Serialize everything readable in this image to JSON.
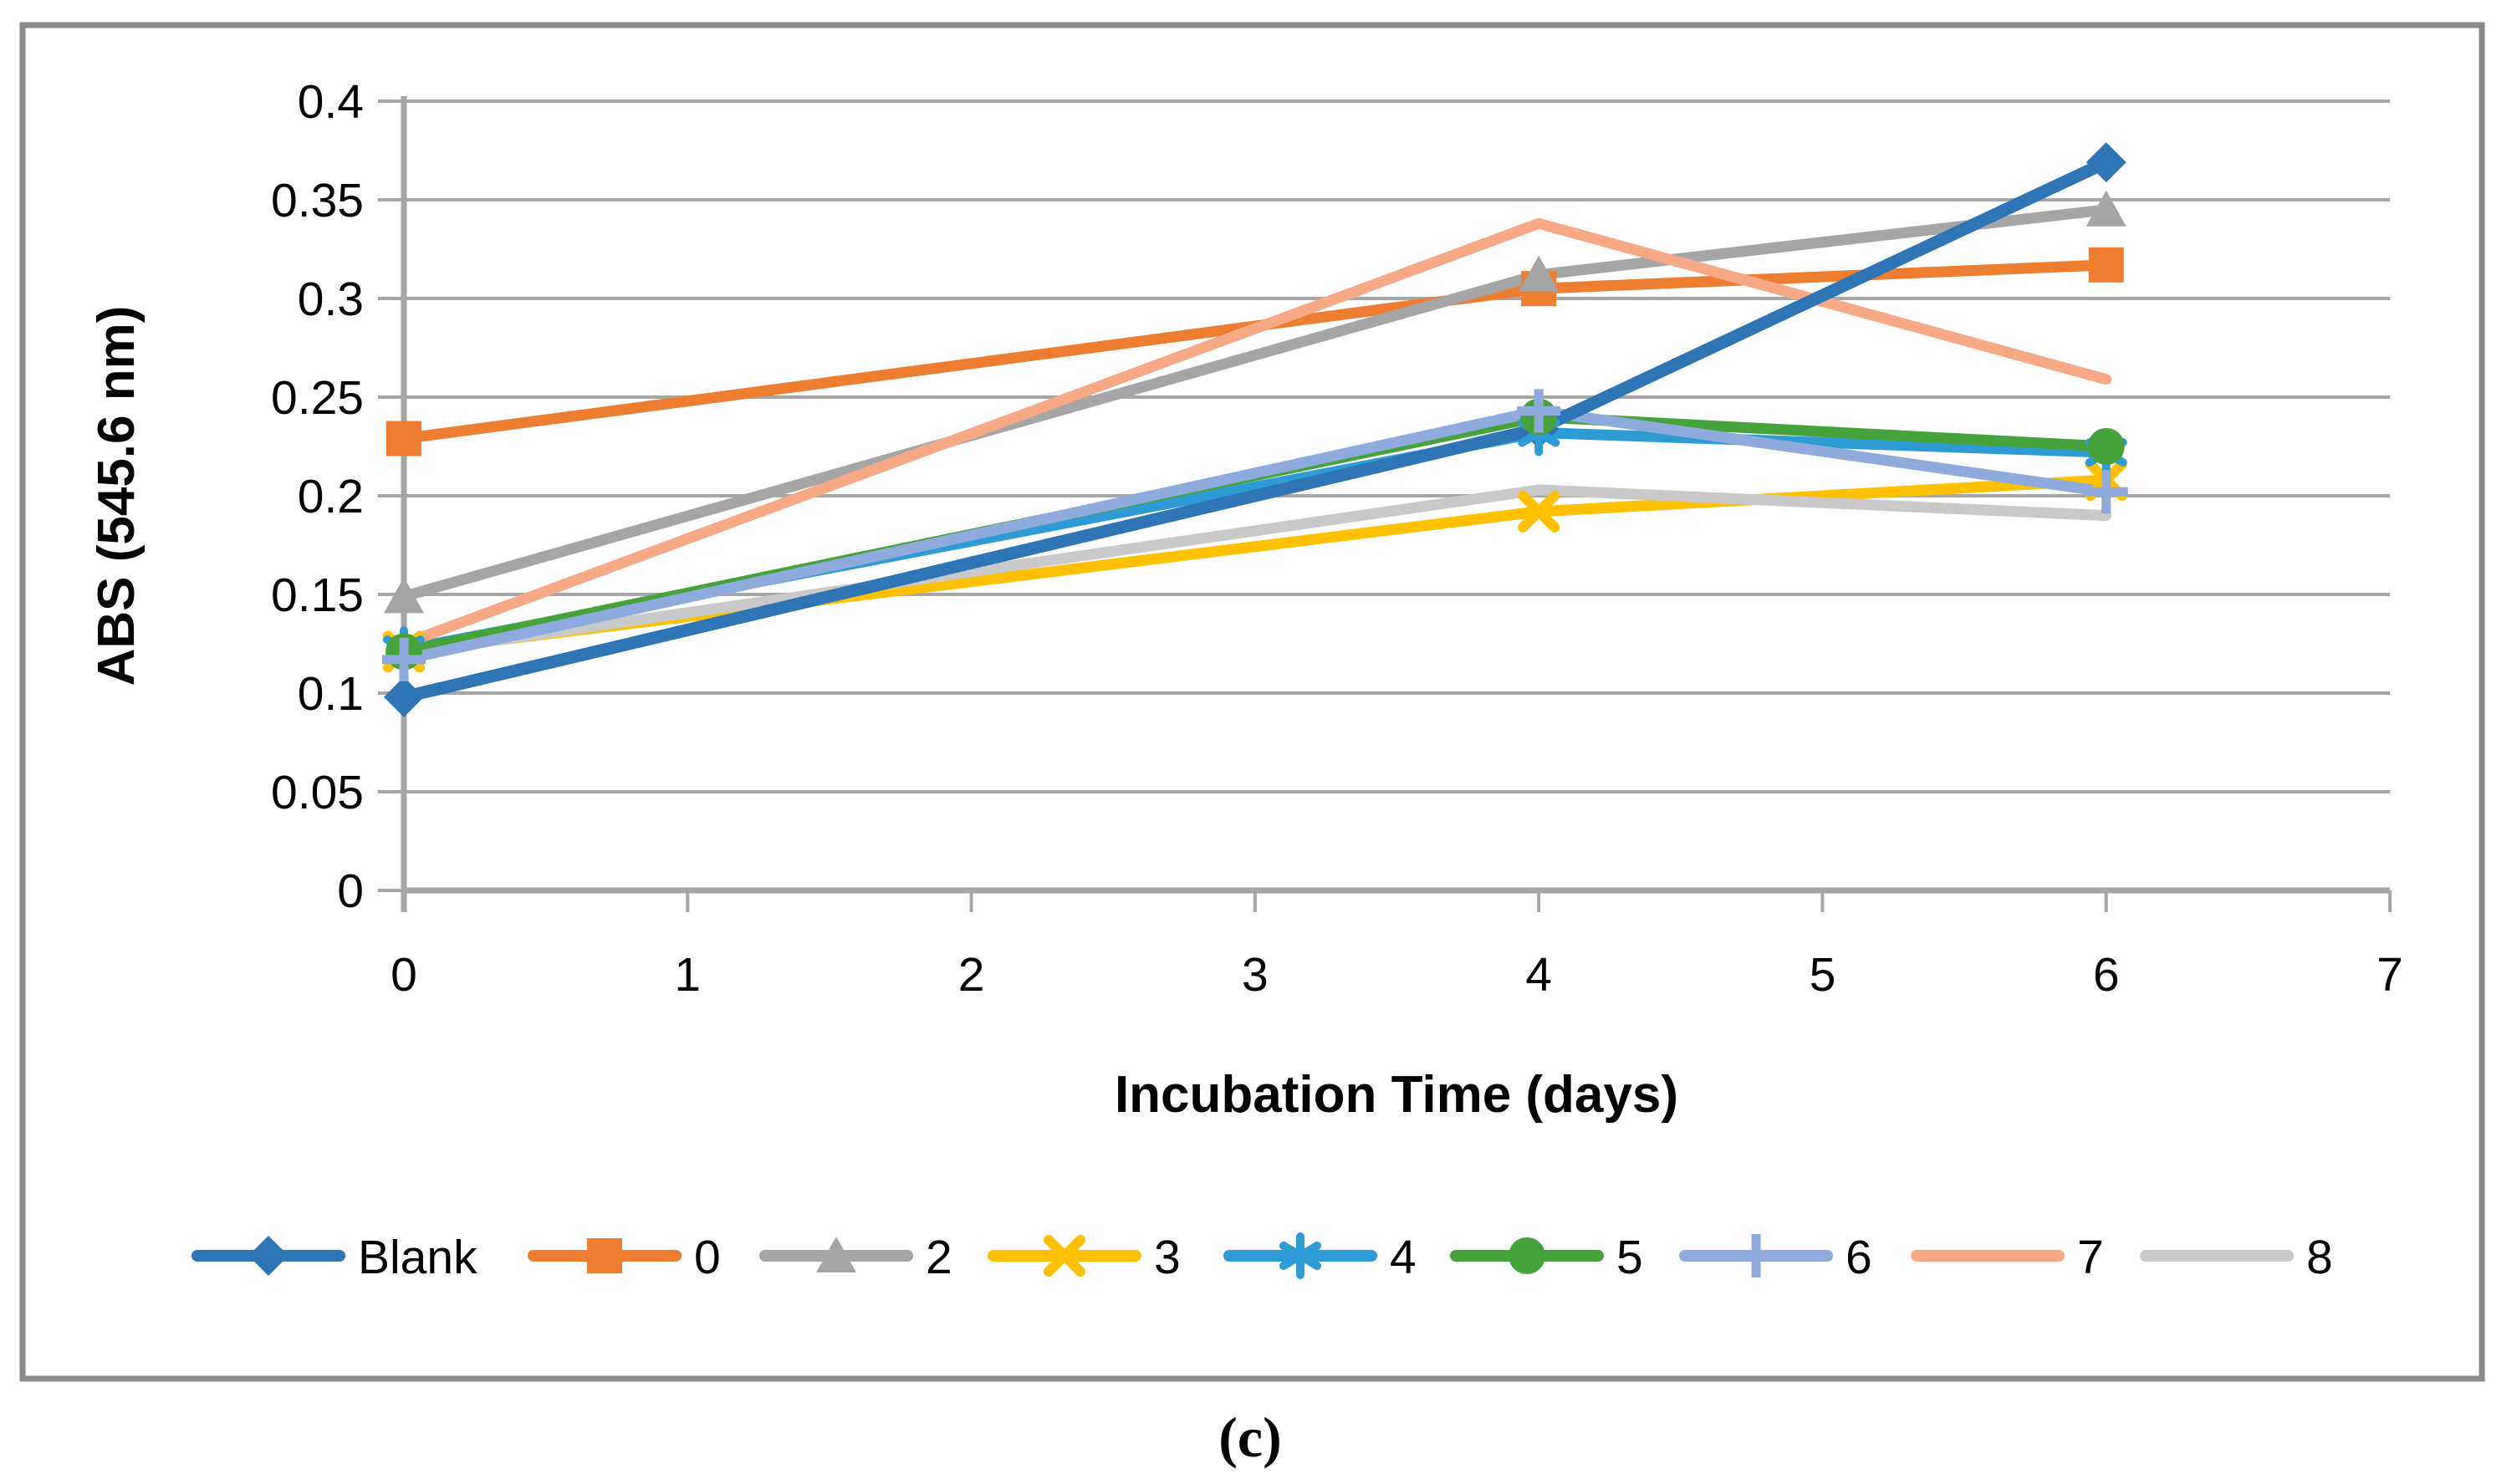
{
  "figure": {
    "background_color": "#FFFFFF",
    "border_color": "#8A8A8A"
  },
  "caption": "(c)",
  "chart_data": {
    "type": "line",
    "title": "",
    "xlabel": "Incubation Time (days)",
    "ylabel": "ABS (545.6 nm)",
    "xlim": [
      0,
      7
    ],
    "ylim": [
      0,
      0.4
    ],
    "grid": "horizontal",
    "grid_color": "#A6A6A6",
    "axis_color": "#A6A6A6",
    "text_color": "#000000",
    "legend_position": "bottom",
    "x_ticks": [
      {
        "value": 0,
        "label": "0"
      },
      {
        "value": 1,
        "label": "1"
      },
      {
        "value": 2,
        "label": "2"
      },
      {
        "value": 3,
        "label": "3"
      },
      {
        "value": 4,
        "label": "4"
      },
      {
        "value": 5,
        "label": "5"
      },
      {
        "value": 6,
        "label": "6"
      },
      {
        "value": 7,
        "label": "7"
      }
    ],
    "y_ticks": [
      {
        "value": 0,
        "label": "0"
      },
      {
        "value": 0.05,
        "label": "0.05"
      },
      {
        "value": 0.1,
        "label": "0.1"
      },
      {
        "value": 0.15,
        "label": "0.15"
      },
      {
        "value": 0.2,
        "label": "0.2"
      },
      {
        "value": 0.25,
        "label": "0.25"
      },
      {
        "value": 0.3,
        "label": "0.3"
      },
      {
        "value": 0.35,
        "label": "0.35"
      },
      {
        "value": 0.4,
        "label": "0.4"
      }
    ],
    "x": [
      0,
      4,
      6
    ],
    "series": [
      {
        "name": "Blank",
        "color": "#2E75B6",
        "marker": "diamond",
        "values": [
          0.098,
          0.234,
          0.369
        ]
      },
      {
        "name": "0",
        "color": "#ED7D31",
        "marker": "square",
        "values": [
          0.229,
          0.305,
          0.317
        ]
      },
      {
        "name": "2",
        "color": "#A5A5A5",
        "marker": "triangle",
        "values": [
          0.149,
          0.312,
          0.345
        ]
      },
      {
        "name": "3",
        "color": "#FFC000",
        "marker": "x",
        "values": [
          0.121,
          0.192,
          0.208
        ]
      },
      {
        "name": "4",
        "color": "#2E9BD5",
        "marker": "asterisk",
        "values": [
          0.122,
          0.232,
          0.222
        ]
      },
      {
        "name": "5",
        "color": "#46A33C",
        "marker": "circle",
        "values": [
          0.121,
          0.24,
          0.225
        ]
      },
      {
        "name": "6",
        "color": "#8FAADC",
        "marker": "plus",
        "values": [
          0.117,
          0.243,
          0.202
        ]
      },
      {
        "name": "7",
        "color": "#F7A986",
        "marker": "none",
        "values": [
          0.125,
          0.338,
          0.259
        ]
      },
      {
        "name": "8",
        "color": "#C9C9C9",
        "marker": "none",
        "values": [
          0.12,
          0.203,
          0.19
        ]
      }
    ]
  }
}
